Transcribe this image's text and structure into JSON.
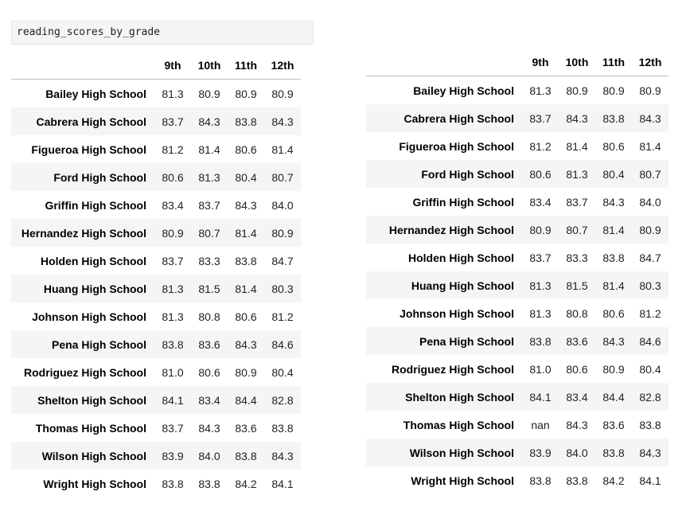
{
  "code_cell": {
    "text": "reading_scores_by_grade"
  },
  "tables": {
    "left": {
      "columns": [
        "9th",
        "10th",
        "11th",
        "12th"
      ],
      "rows": [
        {
          "index": "Bailey High School",
          "values": [
            "81.3",
            "80.9",
            "80.9",
            "80.9"
          ]
        },
        {
          "index": "Cabrera High School",
          "values": [
            "83.7",
            "84.3",
            "83.8",
            "84.3"
          ]
        },
        {
          "index": "Figueroa High School",
          "values": [
            "81.2",
            "81.4",
            "80.6",
            "81.4"
          ]
        },
        {
          "index": "Ford High School",
          "values": [
            "80.6",
            "81.3",
            "80.4",
            "80.7"
          ]
        },
        {
          "index": "Griffin High School",
          "values": [
            "83.4",
            "83.7",
            "84.3",
            "84.0"
          ]
        },
        {
          "index": "Hernandez High School",
          "values": [
            "80.9",
            "80.7",
            "81.4",
            "80.9"
          ]
        },
        {
          "index": "Holden High School",
          "values": [
            "83.7",
            "83.3",
            "83.8",
            "84.7"
          ]
        },
        {
          "index": "Huang High School",
          "values": [
            "81.3",
            "81.5",
            "81.4",
            "80.3"
          ]
        },
        {
          "index": "Johnson High School",
          "values": [
            "81.3",
            "80.8",
            "80.6",
            "81.2"
          ]
        },
        {
          "index": "Pena High School",
          "values": [
            "83.8",
            "83.6",
            "84.3",
            "84.6"
          ]
        },
        {
          "index": "Rodriguez High School",
          "values": [
            "81.0",
            "80.6",
            "80.9",
            "80.4"
          ]
        },
        {
          "index": "Shelton High School",
          "values": [
            "84.1",
            "83.4",
            "84.4",
            "82.8"
          ]
        },
        {
          "index": "Thomas High School",
          "values": [
            "83.7",
            "84.3",
            "83.6",
            "83.8"
          ]
        },
        {
          "index": "Wilson High School",
          "values": [
            "83.9",
            "84.0",
            "83.8",
            "84.3"
          ]
        },
        {
          "index": "Wright High School",
          "values": [
            "83.8",
            "83.8",
            "84.2",
            "84.1"
          ]
        }
      ]
    },
    "right": {
      "columns": [
        "9th",
        "10th",
        "11th",
        "12th"
      ],
      "rows": [
        {
          "index": "Bailey High School",
          "values": [
            "81.3",
            "80.9",
            "80.9",
            "80.9"
          ]
        },
        {
          "index": "Cabrera High School",
          "values": [
            "83.7",
            "84.3",
            "83.8",
            "84.3"
          ]
        },
        {
          "index": "Figueroa High School",
          "values": [
            "81.2",
            "81.4",
            "80.6",
            "81.4"
          ]
        },
        {
          "index": "Ford High School",
          "values": [
            "80.6",
            "81.3",
            "80.4",
            "80.7"
          ]
        },
        {
          "index": "Griffin High School",
          "values": [
            "83.4",
            "83.7",
            "84.3",
            "84.0"
          ]
        },
        {
          "index": "Hernandez High School",
          "values": [
            "80.9",
            "80.7",
            "81.4",
            "80.9"
          ]
        },
        {
          "index": "Holden High School",
          "values": [
            "83.7",
            "83.3",
            "83.8",
            "84.7"
          ]
        },
        {
          "index": "Huang High School",
          "values": [
            "81.3",
            "81.5",
            "81.4",
            "80.3"
          ]
        },
        {
          "index": "Johnson High School",
          "values": [
            "81.3",
            "80.8",
            "80.6",
            "81.2"
          ]
        },
        {
          "index": "Pena High School",
          "values": [
            "83.8",
            "83.6",
            "84.3",
            "84.6"
          ]
        },
        {
          "index": "Rodriguez High School",
          "values": [
            "81.0",
            "80.6",
            "80.9",
            "80.4"
          ]
        },
        {
          "index": "Shelton High School",
          "values": [
            "84.1",
            "83.4",
            "84.4",
            "82.8"
          ]
        },
        {
          "index": "Thomas High School",
          "values": [
            "nan",
            "84.3",
            "83.6",
            "83.8"
          ]
        },
        {
          "index": "Wilson High School",
          "values": [
            "83.9",
            "84.0",
            "83.8",
            "84.3"
          ]
        },
        {
          "index": "Wright High School",
          "values": [
            "83.8",
            "83.8",
            "84.2",
            "84.1"
          ]
        }
      ]
    }
  }
}
